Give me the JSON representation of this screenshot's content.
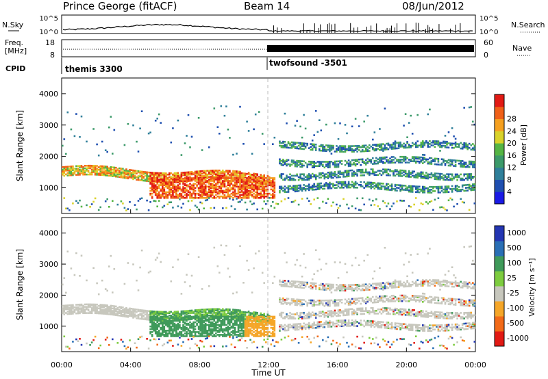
{
  "header": {
    "station": "Prince George (fitACF)",
    "beam": "Beam 14",
    "date": "08/Jun/2012"
  },
  "top_panels": {
    "nsky_label": "N.Sky",
    "nsearch_label": "N.Search",
    "log_top": "10^5",
    "log_bottom": "10^0",
    "freq_label_1": "Freq.",
    "freq_label_2": "[MHz]",
    "freq_max": "18",
    "freq_min": "8",
    "nave_label": "Nave",
    "nave_max": "60",
    "nave_min": "0",
    "cpid_label": "CPID",
    "cpid_1": "themis 3300",
    "cpid_2": "twofsound -3501"
  },
  "colors": {
    "power": [
      "#1a1ae6",
      "#1f4fb0",
      "#2f7f9a",
      "#3c9a6a",
      "#55b544",
      "#d9d22a",
      "#f5a020",
      "#f06018",
      "#e21a14"
    ],
    "velocity": [
      "#e21a14",
      "#f26a18",
      "#f5a628",
      "#c7c7bd",
      "#7dcc3f",
      "#3f9a5a",
      "#2a6fb5",
      "#2436b3"
    ]
  },
  "chart_data": [
    {
      "type": "heatmap",
      "title": "",
      "xlabel": "",
      "ylabel": "Slant Range [km]",
      "xlim": [
        0,
        24
      ],
      "ylim": [
        180,
        4500
      ],
      "x_ticks": [
        0,
        4,
        8,
        12,
        16,
        20,
        24
      ],
      "y_ticks": [
        1000,
        2000,
        3000,
        4000
      ],
      "colorbar": {
        "label": "Power [dB]",
        "ticks": [
          "4",
          "8",
          "12",
          "16",
          "20",
          "24",
          "28"
        ]
      }
    },
    {
      "type": "heatmap",
      "title": "",
      "xlabel": "Time UT",
      "ylabel": "Slant Range [km]",
      "xlim": [
        0,
        24
      ],
      "ylim": [
        180,
        4500
      ],
      "x_tick_labels": [
        "00:00",
        "04:00",
        "08:00",
        "12:00",
        "16:00",
        "20:00",
        "00:00"
      ],
      "y_ticks": [
        1000,
        2000,
        3000,
        4000
      ],
      "colorbar": {
        "label": "Velocity [m s⁻¹]",
        "ticks": [
          "1000",
          "500",
          "100",
          "25",
          "-25",
          "-100",
          "-500",
          "-1000"
        ]
      }
    }
  ]
}
